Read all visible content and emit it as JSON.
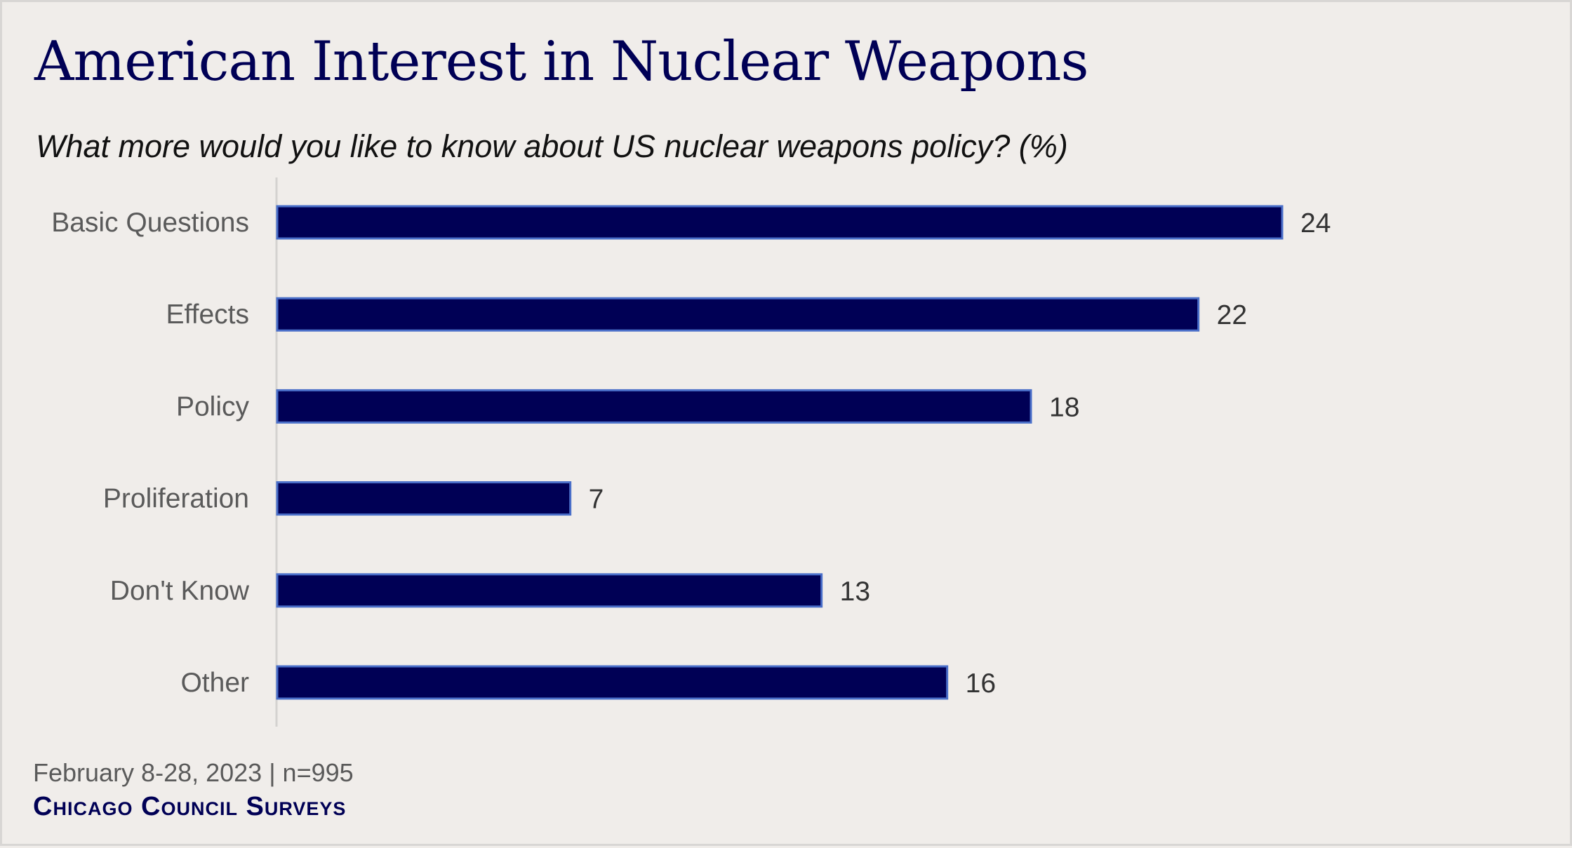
{
  "chart_data": {
    "type": "bar",
    "orientation": "horizontal",
    "title": "American Interest in Nuclear Weapons",
    "subtitle": "What more would you like to know about US nuclear weapons policy? (%)",
    "categories": [
      "Basic Questions",
      "Effects",
      "Policy",
      "Proliferation",
      "Don't Know",
      "Other"
    ],
    "values": [
      24,
      22,
      18,
      7,
      13,
      16
    ],
    "xlim": [
      0,
      24
    ],
    "grid": false,
    "colors": {
      "bar_fill": "#000055",
      "bar_stroke": "#4a6fc9",
      "background": "#f0edea",
      "axis": "#d4d2d0"
    }
  },
  "footer": {
    "date_sample": "February 8-28, 2023 | n=995",
    "logo": "Chicago Council Surveys"
  }
}
